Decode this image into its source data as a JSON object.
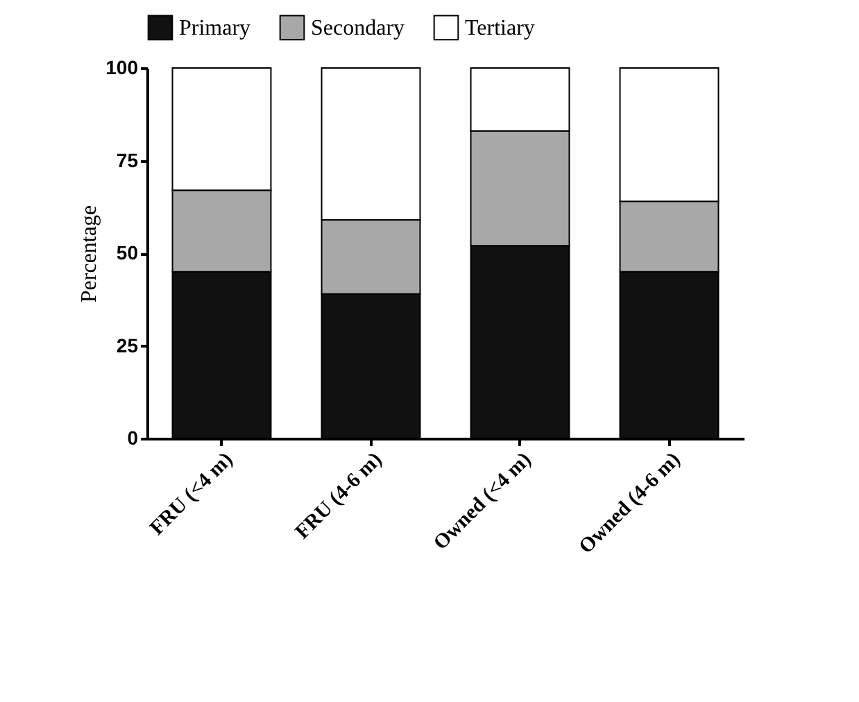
{
  "chart_data": {
    "type": "bar",
    "stacked": true,
    "ylabel": "Percentage",
    "categories": [
      "FRU (<4 m)",
      "FRU (4-6 m)",
      "Owned (<4 m)",
      "Owned (4-6 m)"
    ],
    "series": [
      {
        "name": "Primary",
        "color": "#111111",
        "values": [
          45,
          39,
          52,
          45
        ]
      },
      {
        "name": "Secondary",
        "color": "#a8a8a8",
        "values": [
          22,
          20,
          31,
          19
        ]
      },
      {
        "name": "Tertiary",
        "color": "#ffffff",
        "values": [
          33,
          41,
          17,
          36
        ]
      }
    ],
    "ylim": [
      0,
      100
    ],
    "yticks": [
      0,
      25,
      50,
      75,
      100
    ],
    "grid": false,
    "legend": "top"
  }
}
